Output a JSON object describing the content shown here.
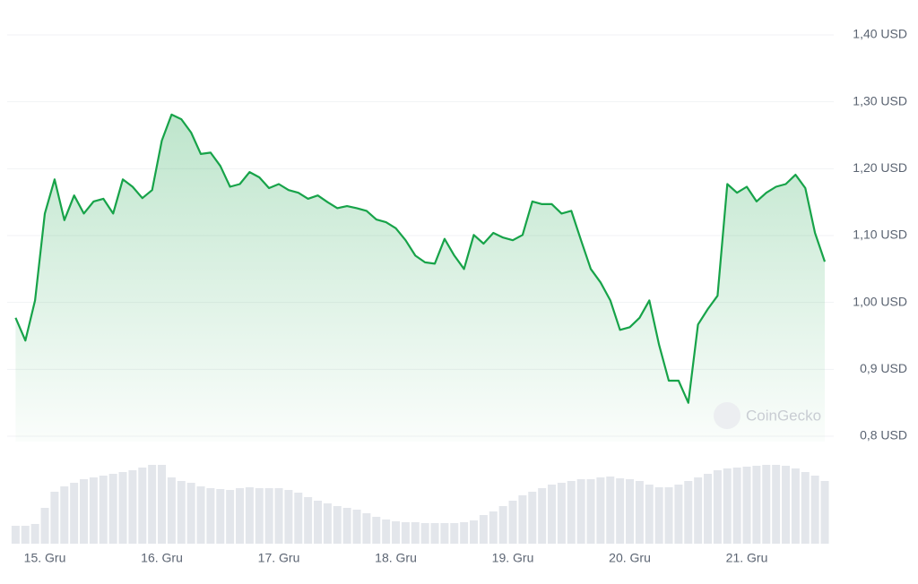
{
  "chart_data": [
    {
      "type": "line",
      "watermark": "CoinGecko",
      "color": "#17a349",
      "grid": true,
      "ylim": [
        0.8,
        1.4
      ],
      "yticks": [
        {
          "value": 0.8,
          "label": "0,8 USD"
        },
        {
          "value": 0.9,
          "label": "0,9 USD"
        },
        {
          "value": 1.0,
          "label": "1,00 USD"
        },
        {
          "value": 1.1,
          "label": "1,10 USD"
        },
        {
          "value": 1.2,
          "label": "1,20 USD"
        },
        {
          "value": 1.3,
          "label": "1,30 USD"
        },
        {
          "value": 1.4,
          "label": "1,40 USD"
        }
      ],
      "categories": [
        null,
        null,
        null,
        "15. Gru",
        null,
        null,
        null,
        null,
        null,
        null,
        null,
        null,
        null,
        null,
        null,
        "16. Gru",
        null,
        null,
        null,
        null,
        null,
        null,
        null,
        null,
        null,
        null,
        null,
        "17. Gru",
        null,
        null,
        null,
        null,
        null,
        null,
        null,
        null,
        null,
        null,
        null,
        "18. Gru",
        null,
        null,
        null,
        null,
        null,
        null,
        null,
        null,
        null,
        null,
        null,
        "19. Gru",
        null,
        null,
        null,
        null,
        null,
        null,
        null,
        null,
        null,
        null,
        null,
        "20. Gru",
        null,
        null,
        null,
        null,
        null,
        null,
        null,
        null,
        null,
        null,
        null,
        "21. Gru",
        null,
        null,
        null,
        null,
        null,
        null,
        null,
        null
      ],
      "values": [
        0.977,
        0.943,
        1.003,
        1.133,
        1.184,
        1.123,
        1.16,
        1.133,
        1.151,
        1.155,
        1.133,
        1.184,
        1.173,
        1.156,
        1.168,
        1.242,
        1.281,
        1.274,
        1.254,
        1.222,
        1.224,
        1.204,
        1.173,
        1.177,
        1.195,
        1.187,
        1.171,
        1.177,
        1.168,
        1.164,
        1.155,
        1.16,
        1.15,
        1.141,
        1.144,
        1.141,
        1.137,
        1.124,
        1.12,
        1.111,
        1.093,
        1.07,
        1.06,
        1.058,
        1.095,
        1.07,
        1.05,
        1.101,
        1.088,
        1.104,
        1.097,
        1.093,
        1.101,
        1.151,
        1.147,
        1.147,
        1.133,
        1.137,
        1.093,
        1.05,
        1.03,
        1.003,
        0.959,
        0.963,
        0.977,
        1.003,
        0.937,
        0.883,
        0.883,
        0.85,
        0.967,
        0.99,
        1.01,
        1.177,
        1.164,
        1.173,
        1.151,
        1.164,
        1.173,
        1.177,
        1.191,
        1.171,
        1.104,
        1.061
      ]
    },
    {
      "type": "bar",
      "color": "#e3e6eb",
      "ylim": [
        0,
        100
      ],
      "values": [
        20,
        20,
        22,
        40,
        58,
        64,
        68,
        72,
        74,
        76,
        78,
        80,
        82,
        85,
        88,
        88,
        74,
        70,
        68,
        64,
        62,
        61,
        60,
        62,
        63,
        62,
        62,
        62,
        60,
        57,
        52,
        48,
        45,
        42,
        40,
        38,
        34,
        30,
        27,
        25,
        24,
        24,
        23,
        23,
        23,
        23,
        24,
        26,
        32,
        36,
        42,
        48,
        54,
        58,
        62,
        66,
        68,
        70,
        72,
        72,
        74,
        75,
        73,
        72,
        70,
        66,
        63,
        63,
        66,
        70,
        74,
        78,
        82,
        84,
        85,
        86,
        87,
        88,
        88,
        87,
        84,
        80,
        76,
        70
      ]
    }
  ]
}
